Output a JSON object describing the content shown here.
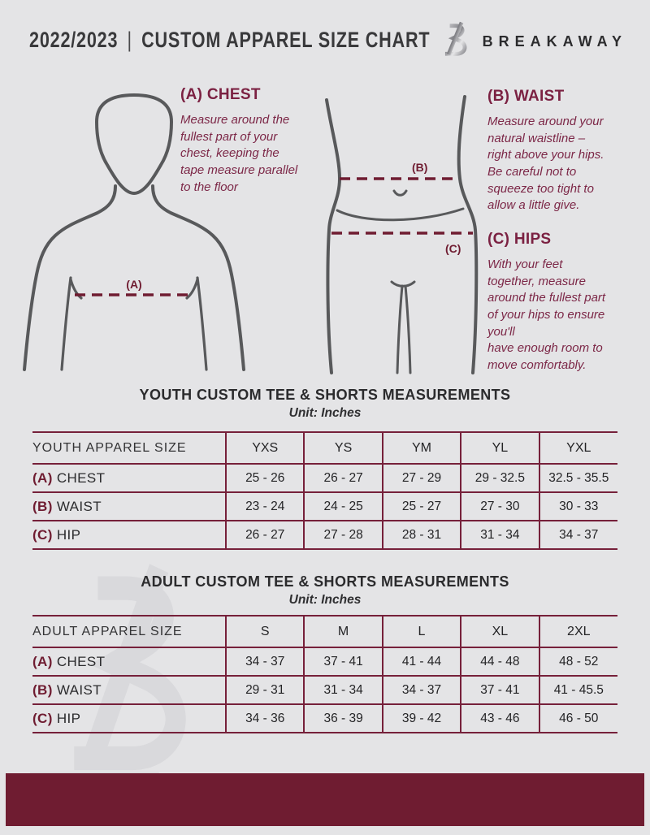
{
  "colors": {
    "background": "#e4e4e6",
    "maroon": "#6f1c31",
    "heading_maroon": "#7b2142",
    "table_line": "#76203a",
    "dark_text": "#2d2d2f",
    "figure_gray": "#58595b",
    "watermark_gray": "#d9d9dc"
  },
  "header": {
    "year_range": "2022/2023",
    "separator": "|",
    "title": "CUSTOM APPAREL SIZE CHART",
    "brand": "BREAKAWAY",
    "logo_icon": "breakaway-b-monogram"
  },
  "measurement_guide": {
    "chest": {
      "marker": "(A)",
      "heading": "(A) CHEST",
      "body": "Measure around the\nfullest part of your\nchest, keeping the\ntape measure parallel\nto the floor"
    },
    "waist": {
      "marker": "(B)",
      "heading": "(B) WAIST",
      "body": "Measure around your\nnatural waistline –\nright above your hips.\nBe careful not to\nsqueeze too tight to\nallow a little give."
    },
    "hips": {
      "marker": "(C)",
      "heading": "(C) HIPS",
      "body": "With your feet\ntogether, measure\naround the fullest part\nof your hips to ensure\nyou'll\nhave enough room to\nmove comfortably."
    }
  },
  "youth_table": {
    "title": "YOUTH CUSTOM TEE & SHORTS MEASUREMENTS",
    "unit": "Unit: Inches",
    "size_header": "YOUTH APPAREL SIZE",
    "columns": [
      "YXS",
      "YS",
      "YM",
      "YL",
      "YXL"
    ],
    "rows": [
      {
        "prefix": "(A)",
        "label": "CHEST",
        "values": [
          "25 - 26",
          "26 - 27",
          "27 - 29",
          "29 - 32.5",
          "32.5 - 35.5"
        ]
      },
      {
        "prefix": "(B)",
        "label": "WAIST",
        "values": [
          "23 - 24",
          "24 - 25",
          "25 - 27",
          "27 - 30",
          "30 - 33"
        ]
      },
      {
        "prefix": "(C)",
        "label": "HIP",
        "values": [
          "26 - 27",
          "27 - 28",
          "28 - 31",
          "31 - 34",
          "34 - 37"
        ]
      }
    ]
  },
  "adult_table": {
    "title": "ADULT CUSTOM TEE & SHORTS MEASUREMENTS",
    "unit": "Unit: Inches",
    "size_header": "ADULT APPAREL SIZE",
    "columns": [
      "S",
      "M",
      "L",
      "XL",
      "2XL"
    ],
    "rows": [
      {
        "prefix": "(A)",
        "label": "CHEST",
        "values": [
          "34 - 37",
          "37 - 41",
          "41 - 44",
          "44 - 48",
          "48 - 52"
        ]
      },
      {
        "prefix": "(B)",
        "label": "WAIST",
        "values": [
          "29 - 31",
          "31 - 34",
          "34 - 37",
          "37 - 41",
          "41 - 45.5"
        ]
      },
      {
        "prefix": "(C)",
        "label": "HIP",
        "values": [
          "34 - 36",
          "36 - 39",
          "39 - 42",
          "43 - 46",
          "46 - 50"
        ]
      }
    ]
  }
}
